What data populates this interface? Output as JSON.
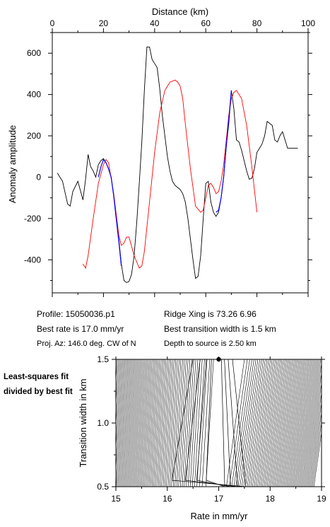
{
  "chart_data": [
    {
      "type": "line",
      "xlabel": "Distance (km)",
      "ylabel": "Anomaly amplitude",
      "xlim": [
        0,
        100
      ],
      "ylim": [
        -560,
        700
      ],
      "x_ticks": [
        0,
        20,
        40,
        60,
        80,
        100
      ],
      "y_ticks": [
        -400,
        -200,
        0,
        200,
        400,
        600
      ],
      "grid": false,
      "series": [
        {
          "color": "#000000",
          "x": [
            2,
            4,
            6,
            7,
            8,
            10,
            12,
            13,
            14,
            15,
            16,
            17,
            18,
            19,
            20,
            21,
            22,
            23,
            24,
            25,
            26,
            27,
            28,
            29,
            30,
            31,
            32,
            33,
            34,
            35,
            36,
            37,
            38,
            39,
            40,
            41,
            42,
            43,
            44,
            45,
            46,
            47,
            48,
            49,
            50,
            51,
            52,
            53,
            54,
            55,
            56,
            57,
            58,
            59,
            60,
            61,
            62,
            63,
            64,
            65,
            66,
            67,
            68,
            69,
            70,
            71,
            72,
            73,
            74,
            75,
            76,
            77,
            78,
            79,
            80,
            81,
            82,
            83,
            84,
            85,
            86,
            87,
            88,
            89,
            90,
            91,
            92,
            93,
            94,
            95,
            96
          ],
          "y": [
            20,
            -20,
            -130,
            -140,
            -70,
            -20,
            -110,
            -10,
            110,
            50,
            30,
            0,
            60,
            80,
            90,
            70,
            40,
            0,
            -90,
            -200,
            -300,
            -420,
            -500,
            -510,
            -505,
            -470,
            -380,
            -220,
            -30,
            170,
            420,
            630,
            630,
            570,
            550,
            530,
            430,
            300,
            200,
            100,
            30,
            -20,
            -40,
            -50,
            -60,
            -80,
            -120,
            -200,
            -300,
            -400,
            -490,
            -480,
            -380,
            -200,
            -30,
            -20,
            -120,
            -170,
            -190,
            -170,
            -100,
            0,
            150,
            260,
            420,
            330,
            180,
            170,
            130,
            80,
            30,
            -10,
            -5,
            40,
            120,
            140,
            160,
            200,
            270,
            260,
            250,
            180,
            170,
            200,
            220,
            180,
            140,
            140,
            140,
            140,
            140
          ]
        },
        {
          "color": "#0000ff",
          "x": [
            18,
            19,
            20,
            21,
            22,
            23,
            24,
            25,
            26,
            27,
            64,
            65,
            66,
            67,
            68,
            69,
            70
          ],
          "y": [
            0,
            50,
            85,
            70,
            40,
            0,
            -90,
            -200,
            -310,
            -430,
            -170,
            -160,
            -100,
            0,
            150,
            280,
            420
          ]
        },
        {
          "color": "#ff0000",
          "x": [
            12,
            13,
            14,
            16,
            18,
            20,
            21,
            22,
            24,
            26,
            27,
            28,
            29,
            30,
            32,
            34,
            35,
            36,
            38,
            40,
            42,
            44,
            46,
            48,
            49,
            50,
            51,
            52,
            54,
            56,
            58,
            59,
            60,
            61,
            62,
            63,
            64,
            65,
            66,
            67,
            68,
            69,
            70,
            71,
            72,
            74,
            76,
            78,
            80
          ],
          "y": [
            -420,
            -440,
            -380,
            -200,
            -30,
            60,
            85,
            70,
            -80,
            -280,
            -330,
            -320,
            -290,
            -290,
            -380,
            -440,
            -430,
            -360,
            -120,
            120,
            310,
            420,
            460,
            470,
            460,
            440,
            380,
            260,
            40,
            -140,
            -170,
            -160,
            -100,
            -40,
            -30,
            -50,
            -80,
            -70,
            -20,
            60,
            180,
            300,
            380,
            410,
            420,
            380,
            250,
            50,
            -170
          ]
        }
      ]
    },
    {
      "type": "contour",
      "xlabel": "Rate in mm/yr",
      "ylabel": "Transition width in km",
      "xlim": [
        15,
        19
      ],
      "ylim": [
        0.5,
        1.5
      ],
      "x_ticks": [
        15,
        16,
        17,
        18,
        19
      ],
      "y_ticks": [
        0.5,
        1.0,
        1.5
      ],
      "best_fit": {
        "rate": 17.0,
        "width": 1.5
      }
    }
  ],
  "info": {
    "profile": "Profile: 15050036.p1",
    "ridge": "Ridge Xing is 73.26 6.96",
    "rate": "Best rate is 17.0 mm/yr",
    "width": "Best transition width is 1.5 km",
    "proj": "Proj. Az: 146.0 deg. CW of N",
    "depth": "Depth to source is    2.50 km"
  },
  "side_note": "Least-squares fit divided by best fit"
}
